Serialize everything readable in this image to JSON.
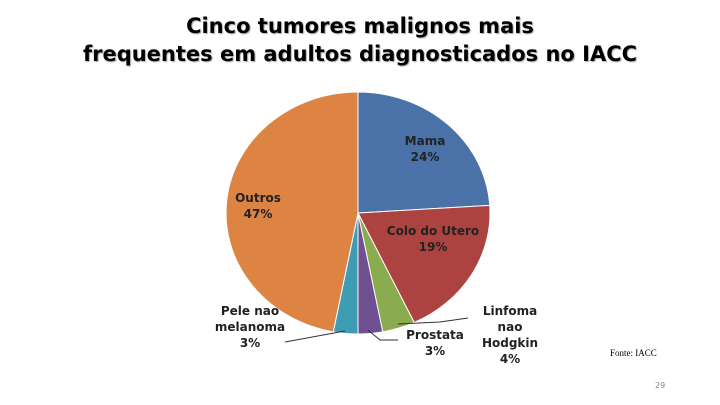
{
  "chart_data": {
    "type": "pie",
    "title": [
      "Cinco tumores malignos mais",
      "frequentes em adultos diagnosticados no IACC"
    ],
    "categories": [
      "Mama",
      "Colo do Utero",
      "Linfoma nao Hodgkin",
      "Prostata",
      "Pele nao melanoma",
      "Outros"
    ],
    "values": [
      24,
      19,
      4,
      3,
      3,
      47
    ],
    "value_labels": [
      "24%",
      "19%",
      "4%",
      "3%",
      "3%",
      "47%"
    ],
    "colors": [
      "#4a72a8",
      "#ad4341",
      "#8aab4e",
      "#6f5192",
      "#3f9db3",
      "#dd8442"
    ]
  },
  "footer": {
    "source": "Fonte: IACC",
    "page_number": "29"
  }
}
